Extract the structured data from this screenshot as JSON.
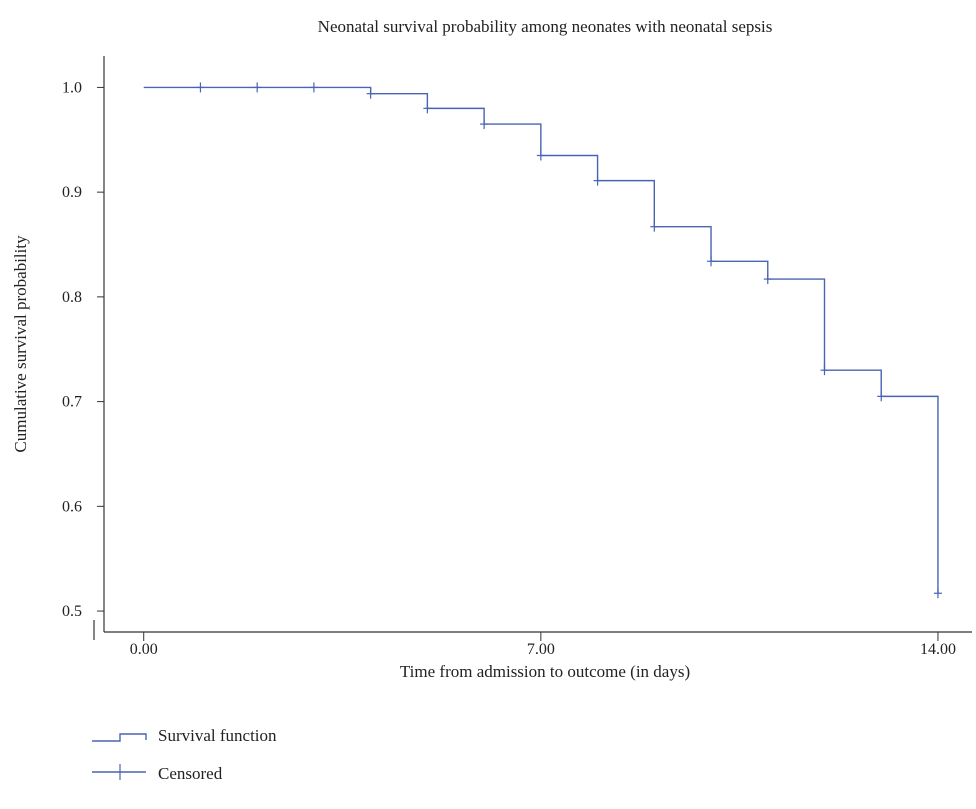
{
  "chart_data": {
    "type": "line",
    "title": "Neonatal survival probability among neonates with neonatal sepsis",
    "xlabel": "Time from admission to outcome (in days)",
    "ylabel": "Cumulative survival probability",
    "xlim": [
      -0.7,
      14.6
    ],
    "ylim": [
      0.48,
      1.03
    ],
    "x_ticks": [
      0,
      7,
      14
    ],
    "x_tick_labels": [
      "0.00",
      "7.00",
      "14.00"
    ],
    "y_ticks": [
      0.5,
      0.6,
      0.7,
      0.8,
      0.9,
      1.0
    ],
    "y_tick_labels": [
      "0.5",
      "0.6",
      "0.7",
      "0.8",
      "0.9",
      "1.0"
    ],
    "grid": false,
    "legend_position": "bottom-left",
    "series": [
      {
        "name": "Survival function",
        "style": "step",
        "color": "#4a64b4",
        "x": [
          0,
          4,
          5,
          6,
          7,
          8,
          9,
          10,
          11,
          12,
          13,
          14
        ],
        "y": [
          1.0,
          0.994,
          0.98,
          0.965,
          0.935,
          0.911,
          0.867,
          0.834,
          0.817,
          0.73,
          0.705,
          0.517
        ]
      },
      {
        "name": "Censored",
        "style": "marker-plus",
        "color": "#4a64b4",
        "x": [
          1,
          2,
          3,
          4,
          5,
          6,
          7,
          8,
          9,
          10,
          11,
          12,
          13,
          14
        ],
        "y": [
          1.0,
          1.0,
          1.0,
          0.994,
          0.98,
          0.965,
          0.935,
          0.911,
          0.867,
          0.834,
          0.817,
          0.73,
          0.705,
          0.517
        ]
      }
    ]
  }
}
